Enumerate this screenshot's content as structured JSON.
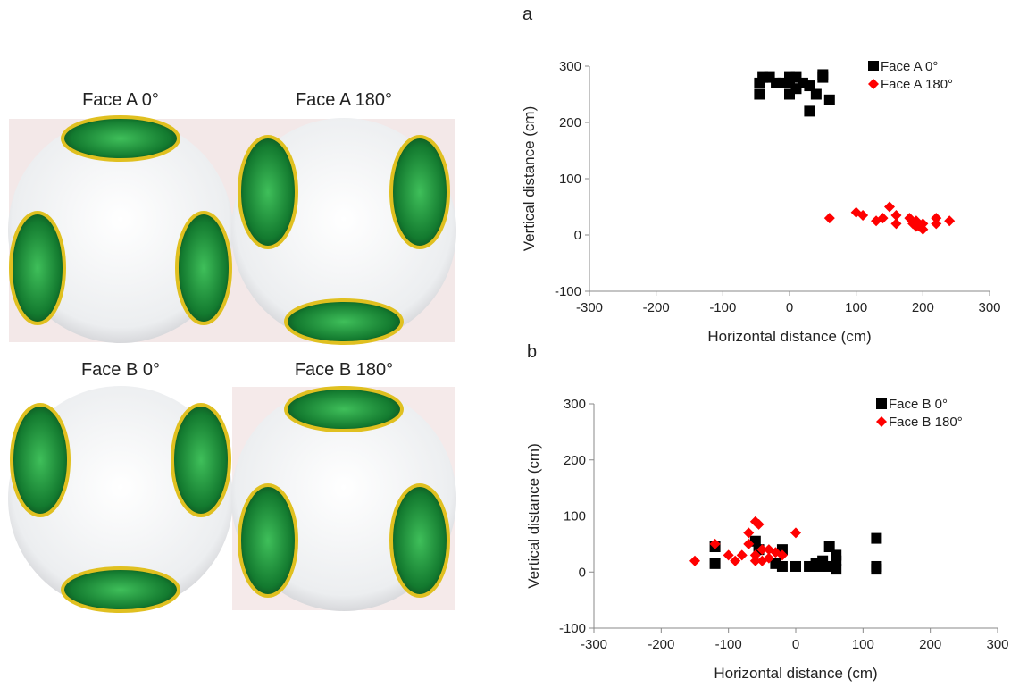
{
  "photos": [
    {
      "label": "Face A 0°"
    },
    {
      "label": "Face A 180°"
    },
    {
      "label": "Face B 0°"
    },
    {
      "label": "Face B 180°"
    }
  ],
  "chart_data": [
    {
      "type": "scatter",
      "panel_label": "a",
      "xlabel": "Horizontal distance (cm)",
      "ylabel": "Vertical distance (cm)",
      "xlim": [
        -300,
        300
      ],
      "ylim": [
        -100,
        300
      ],
      "xticks": [
        -300,
        -200,
        -100,
        0,
        100,
        200,
        300
      ],
      "yticks": [
        -100,
        0,
        100,
        200,
        300
      ],
      "legend": "upper right",
      "series": [
        {
          "name": "Face A 0°",
          "color": "#000000",
          "marker": "square",
          "x": [
            -45,
            -40,
            -45,
            -30,
            -20,
            0,
            0,
            0,
            10,
            10,
            30,
            30,
            40,
            50,
            50,
            60,
            -10,
            20
          ],
          "values": [
            270,
            280,
            250,
            280,
            270,
            280,
            270,
            250,
            280,
            260,
            265,
            220,
            250,
            285,
            280,
            240,
            270,
            270
          ]
        },
        {
          "name": "Face A 180°",
          "color": "#ff0000",
          "marker": "diamond",
          "x": [
            60,
            100,
            110,
            130,
            140,
            150,
            160,
            160,
            180,
            185,
            190,
            195,
            200,
            200,
            220,
            220,
            240,
            190
          ],
          "values": [
            30,
            40,
            35,
            25,
            30,
            50,
            35,
            20,
            30,
            20,
            25,
            15,
            10,
            20,
            30,
            20,
            25,
            15
          ]
        }
      ]
    },
    {
      "type": "scatter",
      "panel_label": "b",
      "xlabel": "Horizontal distance (cm)",
      "ylabel": "Vertical distance (cm)",
      "xlim": [
        -300,
        300
      ],
      "ylim": [
        -100,
        300
      ],
      "xticks": [
        -300,
        -200,
        -100,
        0,
        100,
        200,
        300
      ],
      "yticks": [
        -100,
        0,
        100,
        200,
        300
      ],
      "legend": "upper right",
      "series": [
        {
          "name": "Face B 0°",
          "color": "#000000",
          "marker": "square",
          "x": [
            -120,
            -120,
            -60,
            -55,
            -30,
            -20,
            -20,
            0,
            20,
            30,
            40,
            50,
            50,
            60,
            60,
            60,
            120,
            120,
            120,
            35
          ],
          "values": [
            45,
            15,
            55,
            40,
            15,
            40,
            10,
            10,
            10,
            15,
            20,
            45,
            10,
            30,
            5,
            20,
            60,
            10,
            5,
            10
          ]
        },
        {
          "name": "Face B 180°",
          "color": "#ff0000",
          "marker": "diamond",
          "x": [
            -150,
            -120,
            -100,
            -90,
            -80,
            -70,
            -70,
            -60,
            -55,
            -60,
            -50,
            -50,
            -40,
            -30,
            -20,
            0,
            -60,
            -40
          ],
          "values": [
            20,
            50,
            30,
            20,
            30,
            70,
            50,
            90,
            85,
            30,
            40,
            20,
            25,
            35,
            30,
            70,
            20,
            40
          ]
        }
      ]
    }
  ]
}
